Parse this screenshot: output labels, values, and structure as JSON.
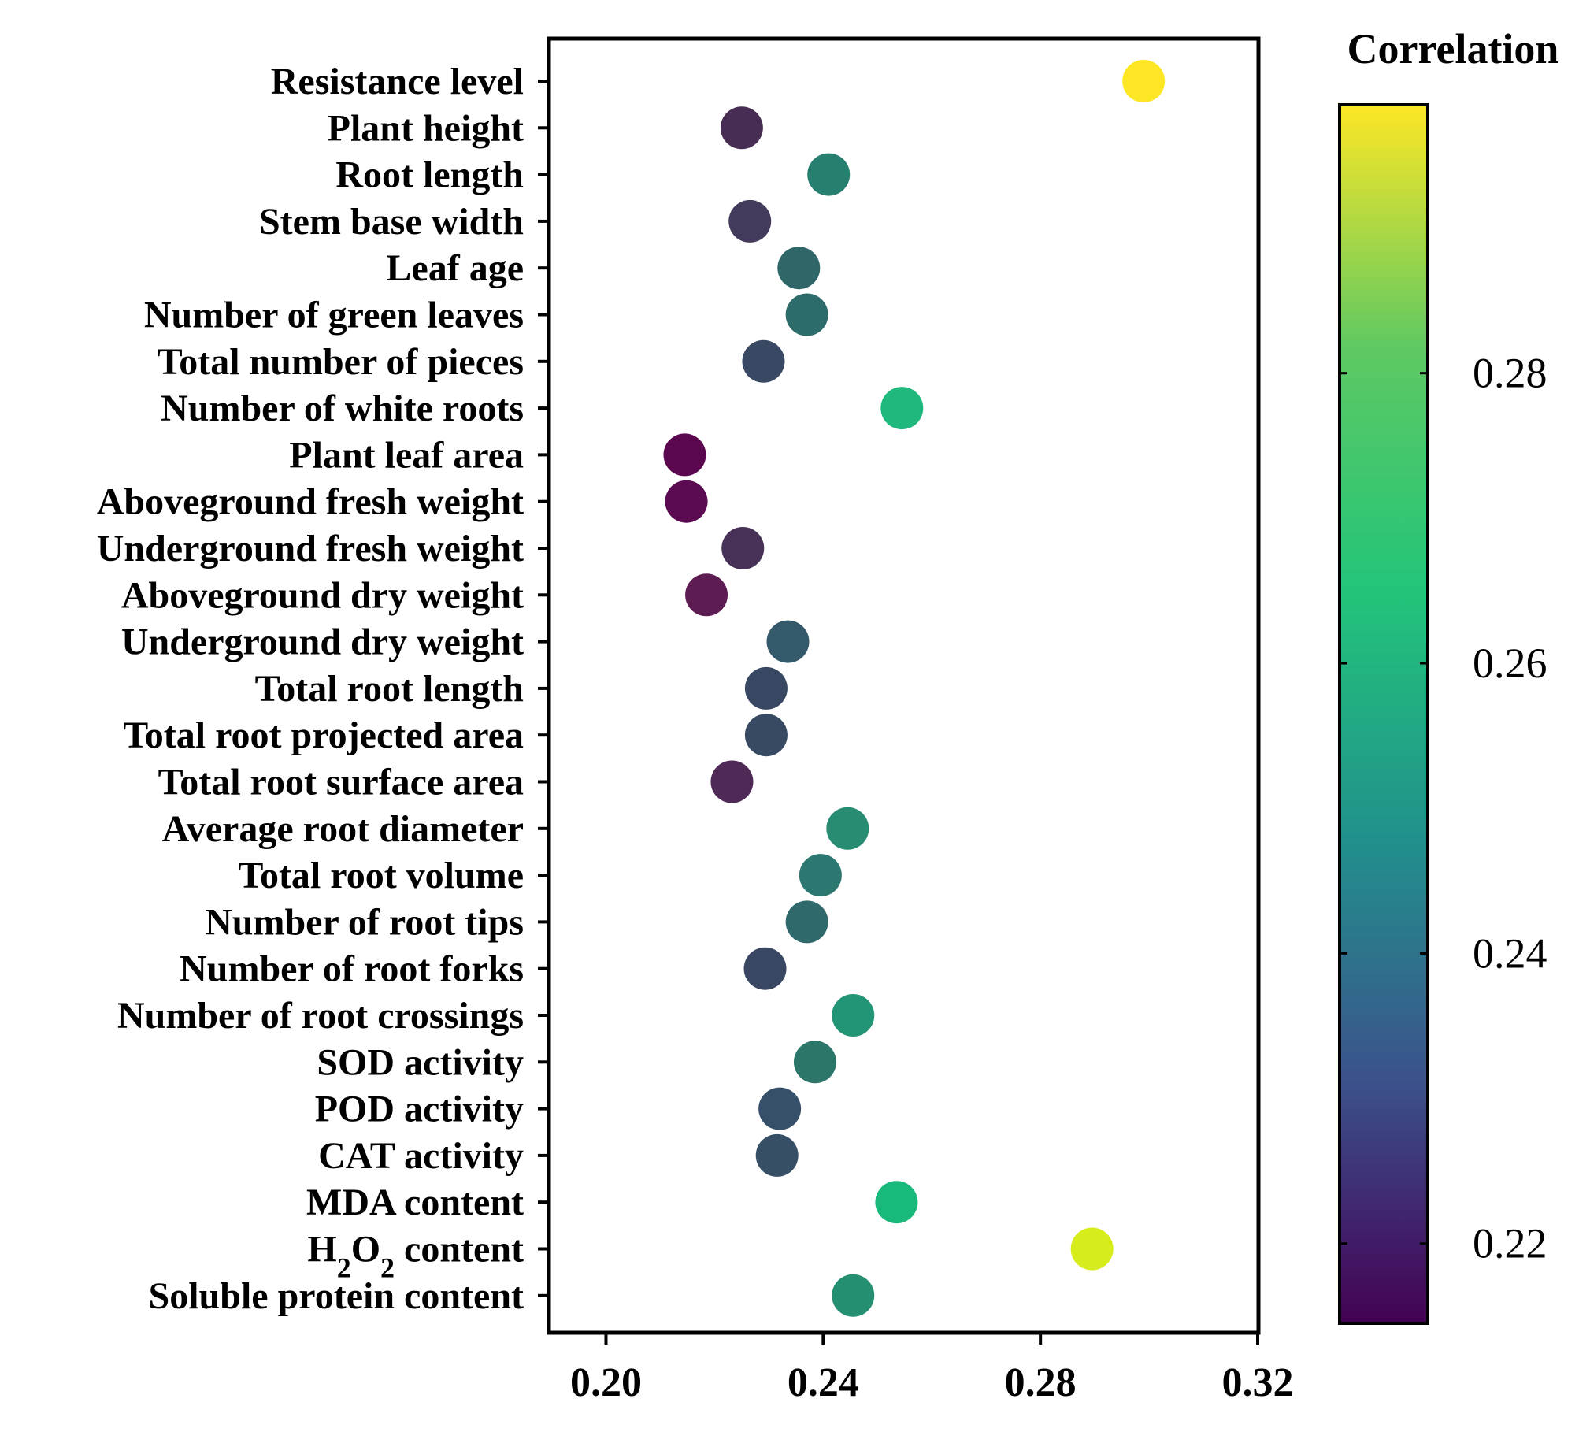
{
  "chart_data": {
    "type": "scatter",
    "title": "",
    "xlabel": "",
    "ylabel": "",
    "xlim": [
      0.195,
      0.32
    ],
    "xticks": [
      "0.20",
      "0.24",
      "0.28",
      "0.32"
    ],
    "grid": false,
    "categories": [
      {
        "label": "Resistance level",
        "value": 0.299,
        "color": "#fde725"
      },
      {
        "label": "Plant height",
        "value": 0.225,
        "color": "#472d54"
      },
      {
        "label": "Root length",
        "value": 0.241,
        "color": "#277f6f"
      },
      {
        "label": "Stem base width",
        "value": 0.2265,
        "color": "#433a5c"
      },
      {
        "label": "Leaf age",
        "value": 0.2355,
        "color": "#2f6769"
      },
      {
        "label": "Number of green leaves",
        "value": 0.237,
        "color": "#2d6c6b"
      },
      {
        "label": "Total number of pieces",
        "value": 0.229,
        "color": "#3a4963"
      },
      {
        "label": "Number of white roots",
        "value": 0.2545,
        "color": "#1fb97d"
      },
      {
        "label": "Plant leaf area",
        "value": 0.2145,
        "color": "#5b0750"
      },
      {
        "label": "Aboveground fresh weight",
        "value": 0.2148,
        "color": "#5c0a52"
      },
      {
        "label": "Underground fresh weight",
        "value": 0.2252,
        "color": "#473157"
      },
      {
        "label": "Aboveground dry weight",
        "value": 0.2185,
        "color": "#5d1d53"
      },
      {
        "label": "Underground dry weight",
        "value": 0.2335,
        "color": "#34596a"
      },
      {
        "label": "Total root length",
        "value": 0.2295,
        "color": "#394862"
      },
      {
        "label": "Total root projected area",
        "value": 0.2295,
        "color": "#384962"
      },
      {
        "label": "Total root surface area",
        "value": 0.2232,
        "color": "#502a57"
      },
      {
        "label": "Average root diameter",
        "value": 0.2445,
        "color": "#278c72"
      },
      {
        "label": "Total root volume",
        "value": 0.2395,
        "color": "#2c7770"
      },
      {
        "label": "Number of root tips",
        "value": 0.237,
        "color": "#30696c"
      },
      {
        "label": "Number of root forks",
        "value": 0.2293,
        "color": "#394762"
      },
      {
        "label": "Number of root crossings",
        "value": 0.2455,
        "color": "#229576"
      },
      {
        "label": "SOD activity",
        "value": 0.2385,
        "color": "#2c7669"
      },
      {
        "label": "POD activity",
        "value": 0.232,
        "color": "#37506a"
      },
      {
        "label": "CAT activity",
        "value": 0.2315,
        "color": "#374f65"
      },
      {
        "label": "MDA content",
        "value": 0.2535,
        "color": "#18b97a"
      },
      {
        "label": "H2O2 content",
        "value": 0.2895,
        "color": "#d7ec1b"
      },
      {
        "label": "Soluble protein content",
        "value": 0.2455,
        "color": "#258f72"
      }
    ],
    "colorbar": {
      "title": "Correlation",
      "range": [
        0.2145,
        0.2985
      ],
      "ticks": [
        "0.22",
        "0.24",
        "0.26",
        "0.28"
      ],
      "colormap": [
        "#440154",
        "#3b528b",
        "#21918c",
        "#22c47a",
        "#5ec962",
        "#fde725"
      ]
    }
  }
}
